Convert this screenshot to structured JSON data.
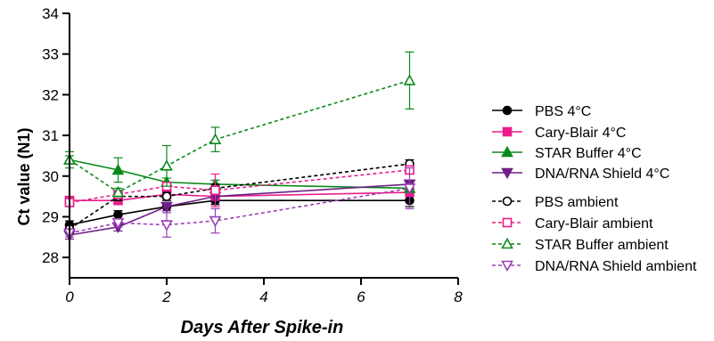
{
  "chart_data": {
    "type": "line",
    "xlabel": "Days After Spike-in",
    "ylabel": "Ct value (N1)",
    "xlim": [
      0,
      8
    ],
    "ylim": [
      27.5,
      34
    ],
    "x_ticks": [
      "0",
      "2",
      "4",
      "6",
      "8"
    ],
    "y_ticks": [
      "28",
      "29",
      "30",
      "31",
      "32",
      "33",
      "34"
    ],
    "x_tick_values": [
      0,
      2,
      4,
      6,
      8
    ],
    "y_tick_values": [
      28,
      29,
      30,
      31,
      32,
      33,
      34
    ],
    "legend_position": "right",
    "grid": false,
    "series": [
      {
        "name": "PBS 4°C",
        "color": "#000000",
        "dashed": false,
        "marker": "circle",
        "filled": true,
        "x": [
          0,
          1,
          2,
          3,
          7
        ],
        "y": [
          28.8,
          29.05,
          29.25,
          29.4,
          29.4
        ],
        "err": [
          0.1,
          0.1,
          0.1,
          0.1,
          0.15
        ]
      },
      {
        "name": "Cary-Blair 4°C",
        "color": "#ec1c8c",
        "dashed": false,
        "marker": "square",
        "filled": true,
        "x": [
          0,
          1,
          2,
          3,
          7
        ],
        "y": [
          29.4,
          29.4,
          29.55,
          29.5,
          29.6
        ],
        "err": [
          0.1,
          0.1,
          0.1,
          0.1,
          0.1
        ]
      },
      {
        "name": "STAR Buffer 4°C",
        "color": "#0a8a1a",
        "dashed": false,
        "marker": "triangle-up",
        "filled": true,
        "x": [
          0,
          1,
          2,
          3,
          7
        ],
        "y": [
          30.4,
          30.15,
          29.85,
          29.8,
          29.7
        ],
        "err": [
          0.2,
          0.3,
          0.1,
          0.1,
          0.1
        ]
      },
      {
        "name": "DNA/RNA Shield 4°C",
        "color": "#6d1f86",
        "dashed": false,
        "marker": "triangle-down",
        "filled": true,
        "x": [
          0,
          1,
          2,
          3,
          7
        ],
        "y": [
          28.55,
          28.75,
          29.25,
          29.5,
          29.8
        ],
        "err": [
          0.1,
          0.1,
          0.1,
          0.1,
          0.1
        ]
      },
      {
        "name": "PBS ambient",
        "color": "#000000",
        "dashed": true,
        "marker": "circle",
        "filled": false,
        "x": [
          0,
          1,
          2,
          3,
          7
        ],
        "y": [
          28.7,
          29.5,
          29.5,
          29.7,
          30.3
        ],
        "err": [
          0.1,
          0.1,
          0.1,
          0.1,
          0.1
        ]
      },
      {
        "name": "Cary-Blair ambient",
        "color": "#ec1c8c",
        "dashed": true,
        "marker": "square",
        "filled": false,
        "x": [
          0,
          1,
          2,
          3,
          7
        ],
        "y": [
          29.35,
          29.55,
          29.75,
          29.65,
          30.15
        ],
        "err": [
          0.1,
          0.1,
          0.1,
          0.4,
          0.1
        ]
      },
      {
        "name": "STAR Buffer ambient",
        "color": "#0a8a1a",
        "dashed": true,
        "marker": "triangle-up",
        "filled": false,
        "x": [
          0,
          1,
          2,
          3,
          7
        ],
        "y": [
          30.4,
          29.6,
          30.25,
          30.9,
          32.35
        ],
        "err": [
          0.1,
          0.1,
          0.5,
          0.3,
          0.7
        ]
      },
      {
        "name": "DNA/RNA Shield ambient",
        "color": "#9c3fb6",
        "dashed": true,
        "marker": "triangle-down",
        "filled": false,
        "x": [
          0,
          1,
          2,
          3,
          7
        ],
        "y": [
          28.6,
          28.85,
          28.8,
          28.9,
          29.7
        ],
        "err": [
          0.1,
          0.1,
          0.3,
          0.3,
          0.5
        ]
      }
    ]
  }
}
